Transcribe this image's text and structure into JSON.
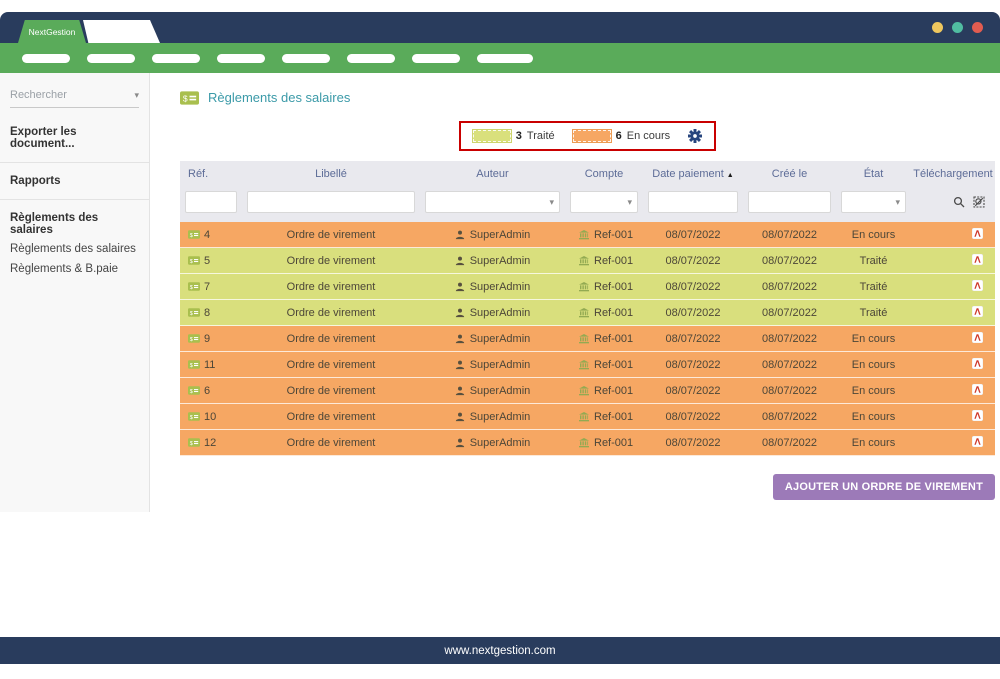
{
  "window": {
    "brand": "NextGestion",
    "footer_url": "www.nextgestion.com",
    "dot_colors": [
      "#efc75e",
      "#50bda1",
      "#e25c50"
    ]
  },
  "navbar": {
    "pill_count": 8
  },
  "sidebar": {
    "search_placeholder": "Rechercher",
    "items": [
      {
        "label": "Exporter les document...",
        "bold": true,
        "divider": true,
        "sub": false
      },
      {
        "label": "Rapports",
        "bold": true,
        "divider": true,
        "sub": false
      },
      {
        "label": "Règlements des salaires",
        "bold": true,
        "divider": false,
        "sub": false
      },
      {
        "label": "Règlements des salaires",
        "bold": false,
        "divider": false,
        "sub": true
      },
      {
        "label": "Règlements & B.paie",
        "bold": false,
        "divider": false,
        "sub": true
      }
    ]
  },
  "main": {
    "title": "Règlements des salaires",
    "legend": {
      "items": [
        {
          "count": "3",
          "label": "Traité",
          "color": "#d9df7d"
        },
        {
          "count": "6",
          "label": "En cours",
          "color": "#f6a763"
        }
      ]
    },
    "table": {
      "columns": [
        "Réf.",
        "Libellé",
        "Auteur",
        "Compte",
        "Date paiement",
        "Créé le",
        "État",
        "Téléchargement"
      ],
      "sort_column": "Date paiement",
      "sort_direction": "asc",
      "rows": [
        {
          "ref": "4",
          "libelle": "Ordre de virement",
          "auteur": "SuperAdmin",
          "compte": "Ref-001",
          "date_paiement": "08/07/2022",
          "cree_le": "08/07/2022",
          "etat": "En cours"
        },
        {
          "ref": "5",
          "libelle": "Ordre de virement",
          "auteur": "SuperAdmin",
          "compte": "Ref-001",
          "date_paiement": "08/07/2022",
          "cree_le": "08/07/2022",
          "etat": "Traité"
        },
        {
          "ref": "7",
          "libelle": "Ordre de virement",
          "auteur": "SuperAdmin",
          "compte": "Ref-001",
          "date_paiement": "08/07/2022",
          "cree_le": "08/07/2022",
          "etat": "Traité"
        },
        {
          "ref": "8",
          "libelle": "Ordre de virement",
          "auteur": "SuperAdmin",
          "compte": "Ref-001",
          "date_paiement": "08/07/2022",
          "cree_le": "08/07/2022",
          "etat": "Traité"
        },
        {
          "ref": "9",
          "libelle": "Ordre de virement",
          "auteur": "SuperAdmin",
          "compte": "Ref-001",
          "date_paiement": "08/07/2022",
          "cree_le": "08/07/2022",
          "etat": "En cours"
        },
        {
          "ref": "11",
          "libelle": "Ordre de virement",
          "auteur": "SuperAdmin",
          "compte": "Ref-001",
          "date_paiement": "08/07/2022",
          "cree_le": "08/07/2022",
          "etat": "En cours"
        },
        {
          "ref": "6",
          "libelle": "Ordre de virement",
          "auteur": "SuperAdmin",
          "compte": "Ref-001",
          "date_paiement": "08/07/2022",
          "cree_le": "08/07/2022",
          "etat": "En cours"
        },
        {
          "ref": "10",
          "libelle": "Ordre de virement",
          "auteur": "SuperAdmin",
          "compte": "Ref-001",
          "date_paiement": "08/07/2022",
          "cree_le": "08/07/2022",
          "etat": "En cours"
        },
        {
          "ref": "12",
          "libelle": "Ordre de virement",
          "auteur": "SuperAdmin",
          "compte": "Ref-001",
          "date_paiement": "08/07/2022",
          "cree_le": "08/07/2022",
          "etat": "En cours"
        }
      ]
    },
    "add_button": "AJOUTER UN ORDRE DE VIREMENT"
  },
  "colors": {
    "navy": "#293c5d",
    "green_nav": "#5aab5a",
    "row_done": "#d9df7d",
    "row_pending": "#f6a763",
    "title_teal": "#3b9aa8",
    "button_purple": "#9c7ab8",
    "legend_border_red": "#c90000"
  }
}
